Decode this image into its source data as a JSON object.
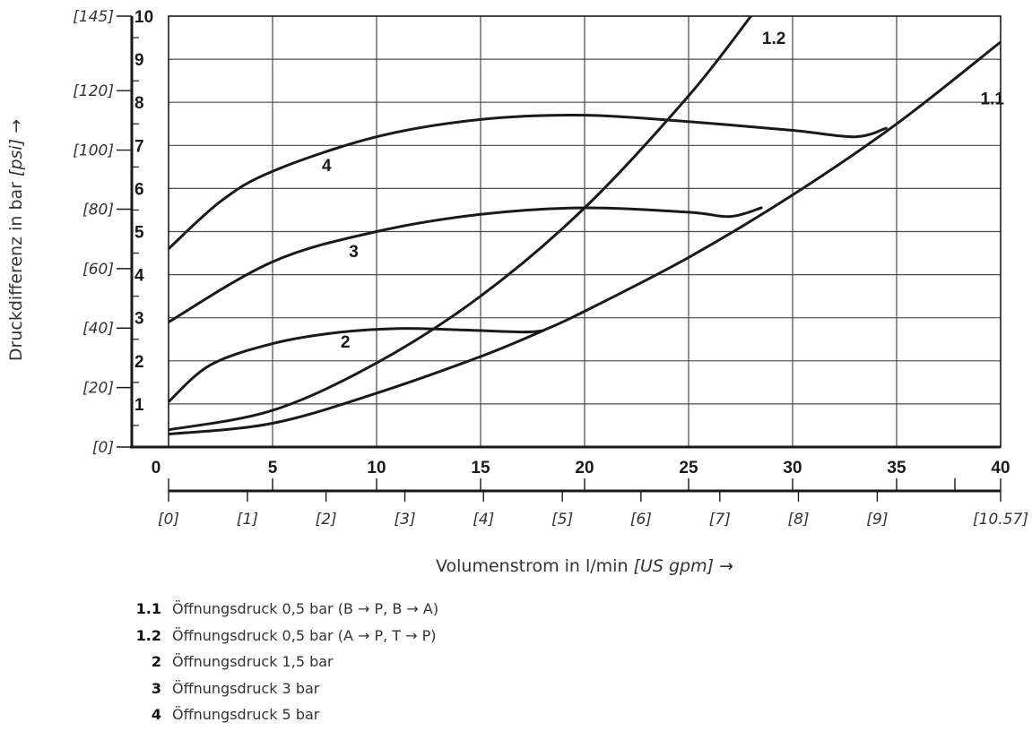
{
  "chart_data": {
    "type": "line",
    "ylabel": "Druckdifferenz in bar",
    "ylabel_unit": "[psi]",
    "ylabel_arrow": "→",
    "xlabel": "Volumenstrom in l/min",
    "xlabel_unit": "[US gpm]",
    "xlabel_arrow": "→",
    "xlim": [
      0,
      40
    ],
    "ylim": [
      0,
      10
    ],
    "grid": true,
    "x_ticks": [
      "0",
      "5",
      "10",
      "15",
      "20",
      "25",
      "30",
      "35",
      "40"
    ],
    "y_ticks": [
      "1",
      "2",
      "3",
      "4",
      "5",
      "6",
      "7",
      "8",
      "9",
      "10"
    ],
    "y_secondary_ticks": [
      {
        "label": "[0]",
        "bar": 0
      },
      {
        "label": "[20]",
        "bar": 1.38
      },
      {
        "label": "[40]",
        "bar": 2.76
      },
      {
        "label": "[60]",
        "bar": 4.14
      },
      {
        "label": "[80]",
        "bar": 5.52
      },
      {
        "label": "[100]",
        "bar": 6.89
      },
      {
        "label": "[120]",
        "bar": 8.27
      },
      {
        "label": "[145]",
        "bar": 10
      }
    ],
    "x_secondary_ticks": [
      {
        "label": "[0]",
        "lpm": 0
      },
      {
        "label": "[1]",
        "lpm": 3.79
      },
      {
        "label": "[2]",
        "lpm": 7.57
      },
      {
        "label": "[3]",
        "lpm": 11.36
      },
      {
        "label": "[4]",
        "lpm": 15.14
      },
      {
        "label": "[5]",
        "lpm": 18.93
      },
      {
        "label": "[6]",
        "lpm": 22.71
      },
      {
        "label": "[7]",
        "lpm": 26.5
      },
      {
        "label": "[8]",
        "lpm": 30.28
      },
      {
        "label": "[9]",
        "lpm": 34.07
      },
      {
        "label": "[10.57]",
        "lpm": 40
      }
    ],
    "series": [
      {
        "name": "1.1",
        "label_at": [
          39.6,
          8.1
        ],
        "x": [
          0,
          5,
          10,
          15,
          18,
          20,
          25,
          30,
          35,
          40
        ],
        "y": [
          0.3,
          0.55,
          1.25,
          2.1,
          2.7,
          3.15,
          4.4,
          5.85,
          7.5,
          9.4
        ]
      },
      {
        "name": "1.2",
        "label_at": [
          29.1,
          9.5
        ],
        "x": [
          0,
          5,
          10,
          15,
          20,
          25,
          28
        ],
        "y": [
          0.4,
          0.85,
          1.95,
          3.5,
          5.55,
          8.15,
          10.0
        ]
      },
      {
        "name": "2",
        "label_at": [
          8.5,
          2.45
        ],
        "x": [
          0,
          2,
          5,
          8,
          11,
          14,
          17,
          18
        ],
        "y": [
          1.05,
          1.9,
          2.4,
          2.65,
          2.75,
          2.72,
          2.67,
          2.7
        ]
      },
      {
        "name": "3",
        "label_at": [
          8.9,
          4.55
        ],
        "x": [
          0,
          5,
          10,
          15,
          20,
          25,
          27,
          28.5
        ],
        "y": [
          2.9,
          4.3,
          5.0,
          5.4,
          5.55,
          5.45,
          5.35,
          5.55
        ]
      },
      {
        "name": "4",
        "label_at": [
          7.6,
          6.55
        ],
        "x": [
          0,
          2.5,
          5,
          10,
          15,
          20,
          25,
          30,
          33,
          34.5
        ],
        "y": [
          4.6,
          5.7,
          6.4,
          7.2,
          7.6,
          7.7,
          7.55,
          7.35,
          7.2,
          7.4
        ]
      }
    ]
  },
  "legend": [
    {
      "key": "1.1",
      "text": "Öffnungsdruck 0,5 bar (B → P, B → A)"
    },
    {
      "key": "1.2",
      "text": "Öffnungsdruck 0,5 bar (A → P, T → P)"
    },
    {
      "key": "2",
      "text": "Öffnungsdruck 1,5 bar"
    },
    {
      "key": "3",
      "text": "Öffnungsdruck 3 bar"
    },
    {
      "key": "4",
      "text": "Öffnungsdruck 5 bar"
    }
  ]
}
